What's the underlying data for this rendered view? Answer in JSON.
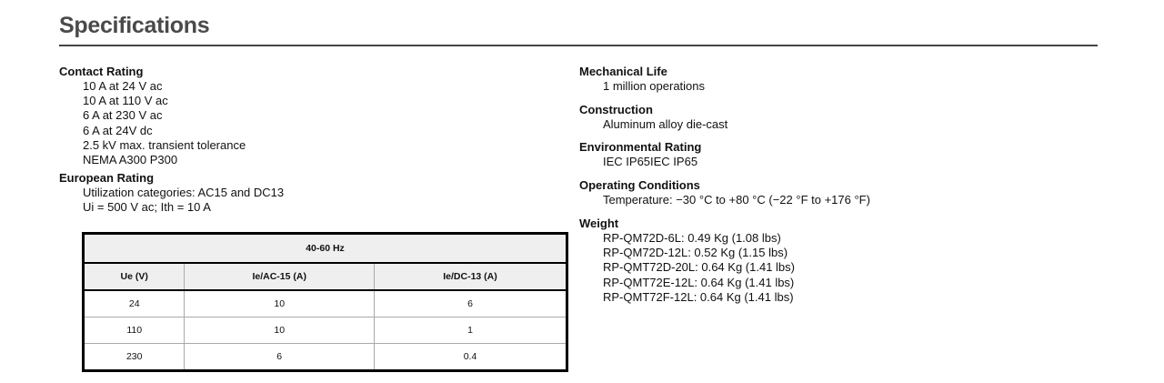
{
  "title": "Specifications",
  "left": [
    {
      "heading": "Contact Rating",
      "lines": [
        "10 A at 24 V ac",
        "10 A at 110 V ac",
        "6 A at 230 V ac",
        "6 A at 24V dc",
        "2.5 kV max. transient tolerance",
        "NEMA A300 P300"
      ]
    },
    {
      "heading": "European Rating",
      "lines": [
        "Utilization categories: AC15 and DC13",
        "Ui = 500 V ac; Ith = 10 A"
      ]
    }
  ],
  "table": {
    "caption": "40-60 Hz",
    "headers": [
      "Ue (V)",
      "Ie/AC-15 (A)",
      "Ie/DC-13 (A)"
    ],
    "rows": [
      [
        "24",
        "10",
        "6"
      ],
      [
        "110",
        "10",
        "1"
      ],
      [
        "230",
        "6",
        "0.4"
      ]
    ]
  },
  "right": [
    {
      "heading": "Mechanical Life",
      "lines": [
        "1 million operations"
      ]
    },
    {
      "heading": "Construction",
      "lines": [
        "Aluminum alloy die-cast"
      ]
    },
    {
      "heading": "Environmental Rating",
      "lines": [
        "IEC IP65IEC IP65"
      ]
    },
    {
      "heading": "Operating Conditions",
      "lines": [
        "Temperature: −30 °C to +80 °C (−22 °F to +176 °F)"
      ]
    },
    {
      "heading": "Weight",
      "lines": [
        "RP-QM72D-6L: 0.49 Kg (1.08 lbs)",
        "RP-QM72D-12L: 0.52 Kg (1.15 lbs)",
        "RP-QMT72D-20L: 0.64 Kg (1.41 lbs)",
        "RP-QMT72E-12L: 0.64 Kg (1.41 lbs)",
        "RP-QMT72F-12L: 0.64 Kg (1.41 lbs)"
      ]
    }
  ]
}
